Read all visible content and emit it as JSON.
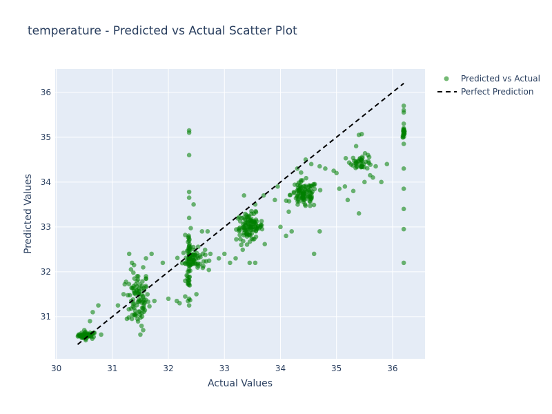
{
  "chart_data": {
    "type": "scatter",
    "title": "temperature - Predicted vs Actual Scatter Plot",
    "xlabel": "Actual Values",
    "ylabel": "Predicted Values",
    "xlim": [
      29.98,
      36.58
    ],
    "ylim": [
      30.06,
      36.52
    ],
    "x_ticks": [
      30,
      31,
      32,
      33,
      34,
      35,
      36
    ],
    "y_ticks": [
      31,
      32,
      33,
      34,
      35,
      36
    ],
    "grid": true,
    "legend_position": "top-right",
    "colors": {
      "plot_bg": "#e5ecf6",
      "points": "#008000",
      "reference_line": "#000000"
    },
    "series": [
      {
        "name": "Predicted vs Actual",
        "mode": "markers",
        "clusters": [
          {
            "x_center": 30.55,
            "y_center": 30.58,
            "x_spread": 0.08,
            "y_spread": 0.04,
            "count": 45
          },
          {
            "x_center": 31.45,
            "y_center": 31.4,
            "x_spread": 0.1,
            "y_spread": 0.3,
            "count": 90
          },
          {
            "x_center": 32.37,
            "y_center": 32.3,
            "x_spread": 0.02,
            "y_spread": 0.45,
            "count": 50
          },
          {
            "x_center": 32.45,
            "y_center": 32.28,
            "x_spread": 0.1,
            "y_spread": 0.12,
            "count": 60
          },
          {
            "x_center": 33.45,
            "y_center": 33.0,
            "x_spread": 0.12,
            "y_spread": 0.15,
            "count": 110
          },
          {
            "x_center": 34.42,
            "y_center": 33.72,
            "x_spread": 0.12,
            "y_spread": 0.15,
            "count": 100
          },
          {
            "x_center": 35.45,
            "y_center": 34.45,
            "x_spread": 0.1,
            "y_spread": 0.08,
            "count": 40
          },
          {
            "x_center": 36.2,
            "y_center": 35.1,
            "x_spread": 0.01,
            "y_spread": 0.05,
            "count": 20
          }
        ],
        "points": [
          [
            30.4,
            30.6
          ],
          [
            30.5,
            30.7
          ],
          [
            30.6,
            30.9
          ],
          [
            30.65,
            31.1
          ],
          [
            30.75,
            31.25
          ],
          [
            30.45,
            30.55
          ],
          [
            30.8,
            30.6
          ],
          [
            31.1,
            31.25
          ],
          [
            31.2,
            31.5
          ],
          [
            31.3,
            32.4
          ],
          [
            31.35,
            32.2
          ],
          [
            31.55,
            32.1
          ],
          [
            31.6,
            32.3
          ],
          [
            31.7,
            32.4
          ],
          [
            31.5,
            30.6
          ],
          [
            31.55,
            30.7
          ],
          [
            31.35,
            30.95
          ],
          [
            31.75,
            31.35
          ],
          [
            31.6,
            31.9
          ],
          [
            31.9,
            32.2
          ],
          [
            32.0,
            31.4
          ],
          [
            32.15,
            31.35
          ],
          [
            32.2,
            31.3
          ],
          [
            32.3,
            31.8
          ],
          [
            32.3,
            31.45
          ],
          [
            32.37,
            35.1
          ],
          [
            32.37,
            35.15
          ],
          [
            32.37,
            34.6
          ],
          [
            32.37,
            33.78
          ],
          [
            32.37,
            33.65
          ],
          [
            32.37,
            33.2
          ],
          [
            32.37,
            31.25
          ],
          [
            32.37,
            31.4
          ],
          [
            32.45,
            33.5
          ],
          [
            32.5,
            31.5
          ],
          [
            32.6,
            32.9
          ],
          [
            32.7,
            32.9
          ],
          [
            32.75,
            32.4
          ],
          [
            32.9,
            32.3
          ],
          [
            33.0,
            32.4
          ],
          [
            33.1,
            32.2
          ],
          [
            33.2,
            32.3
          ],
          [
            33.3,
            32.6
          ],
          [
            33.35,
            33.7
          ],
          [
            33.45,
            32.2
          ],
          [
            33.55,
            32.2
          ],
          [
            33.55,
            33.5
          ],
          [
            33.7,
            33.7
          ],
          [
            33.9,
            33.6
          ],
          [
            33.95,
            33.9
          ],
          [
            34.0,
            33.0
          ],
          [
            34.1,
            32.8
          ],
          [
            34.2,
            32.9
          ],
          [
            34.3,
            34.3
          ],
          [
            34.45,
            34.5
          ],
          [
            34.55,
            34.4
          ],
          [
            34.6,
            32.4
          ],
          [
            34.7,
            32.9
          ],
          [
            34.7,
            34.35
          ],
          [
            34.8,
            34.3
          ],
          [
            34.95,
            34.25
          ],
          [
            35.0,
            34.2
          ],
          [
            35.05,
            33.85
          ],
          [
            35.15,
            33.9
          ],
          [
            35.2,
            33.6
          ],
          [
            35.3,
            33.8
          ],
          [
            35.4,
            33.3
          ],
          [
            35.35,
            34.8
          ],
          [
            35.4,
            35.05
          ],
          [
            35.45,
            35.07
          ],
          [
            35.5,
            34.0
          ],
          [
            35.6,
            34.15
          ],
          [
            35.65,
            34.1
          ],
          [
            35.8,
            34.0
          ],
          [
            35.9,
            34.4
          ],
          [
            35.7,
            34.35
          ],
          [
            36.2,
            35.7
          ],
          [
            36.2,
            35.6
          ],
          [
            36.2,
            35.55
          ],
          [
            36.2,
            35.3
          ],
          [
            36.2,
            34.85
          ],
          [
            36.2,
            34.3
          ],
          [
            36.2,
            33.85
          ],
          [
            36.2,
            33.4
          ],
          [
            36.2,
            32.95
          ],
          [
            36.2,
            32.2
          ],
          [
            36.2,
            35.2
          ]
        ]
      },
      {
        "name": "Perfect Prediction",
        "mode": "line",
        "dash": "dash",
        "x": [
          30.38,
          36.2
        ],
        "y": [
          30.38,
          36.2
        ]
      }
    ]
  }
}
